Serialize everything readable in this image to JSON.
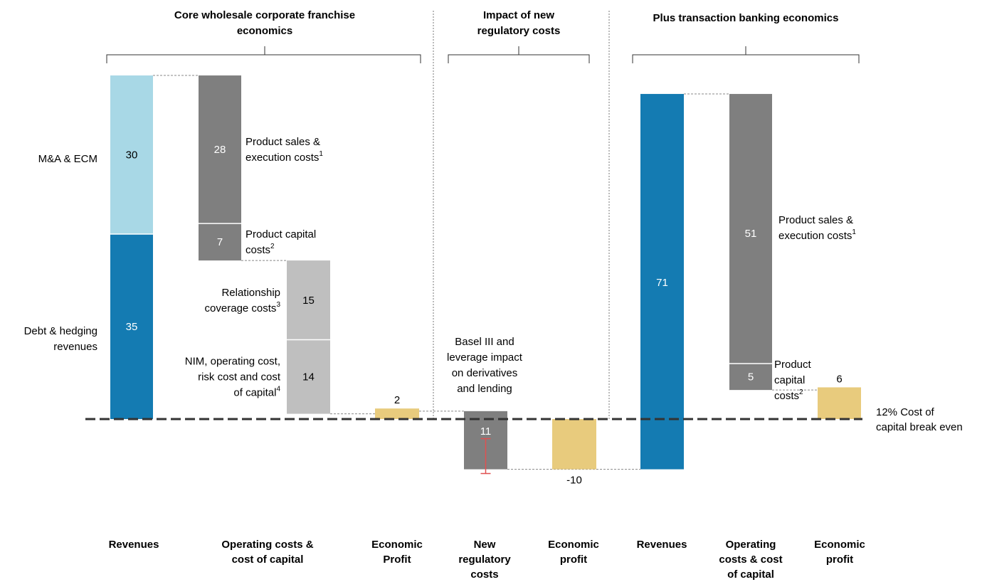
{
  "chart_data": {
    "type": "bar",
    "subtype": "waterfall",
    "baseline_label": [
      "12% Cost of",
      "capital break even"
    ],
    "sections": [
      {
        "title": [
          "Core wholesale corporate franchise",
          "economics"
        ]
      },
      {
        "title": [
          "Impact of new",
          "regulatory costs"
        ]
      },
      {
        "title": [
          "Plus transaction banking economics"
        ]
      }
    ],
    "categories": [
      [
        "Revenues"
      ],
      [
        "Operating costs &",
        "cost of capital"
      ],
      [
        "Economic",
        "Profit"
      ],
      [
        "New",
        "regulatory",
        "costs"
      ],
      [
        "Economic",
        "profit"
      ],
      [
        "Revenues"
      ],
      [
        "Operating",
        "costs & cost",
        "of capital"
      ],
      [
        "Economic",
        "profit"
      ]
    ],
    "segments": [
      {
        "col": 0,
        "from": 35,
        "to": 65,
        "value": "30",
        "color": "#A8D8E6",
        "side_label": [
          "M&A & ECM"
        ]
      },
      {
        "col": 0,
        "from": 0,
        "to": 35,
        "value": "35",
        "color": "#147BB2",
        "side_label": [
          "Debt & hedging",
          "revenues"
        ]
      },
      {
        "col": 1,
        "from": 37,
        "to": 65,
        "value": "28",
        "color": "#7F7F7F",
        "label": [
          "Product sales &",
          "execution costs"
        ],
        "sup": "1"
      },
      {
        "col": 1,
        "from": 30,
        "to": 37,
        "value": "7",
        "color": "#7F7F7F",
        "label": [
          "Product capital",
          "costs"
        ],
        "sup": "2"
      },
      {
        "col": 2,
        "from": 15,
        "to": 30,
        "value": "15",
        "color": "#BFBFBF",
        "label": [
          "Relationship",
          "coverage costs"
        ],
        "sup": "3"
      },
      {
        "col": 2,
        "from": 1,
        "to": 15,
        "value": "14",
        "color": "#BFBFBF",
        "label": [
          "NIM, operating cost,",
          "risk cost and cost",
          "of capital"
        ],
        "sup": "4"
      },
      {
        "col": 3,
        "from": 0,
        "to": 2,
        "value": "2",
        "color": "#E8CB7D"
      },
      {
        "col": 4,
        "from": -9.5,
        "to": 1.5,
        "value": "11",
        "color": "#7F7F7F",
        "label": [
          "Basel III and",
          "leverage impact",
          "on derivatives",
          "and lending"
        ]
      },
      {
        "col": 5,
        "from": -9.5,
        "to": 0,
        "value": "-10",
        "color": "#E8CB7D"
      },
      {
        "col": 6,
        "from": -9.5,
        "to": 61.5,
        "value": "71",
        "color": "#147BB2"
      },
      {
        "col": 7,
        "from": 10.5,
        "to": 61.5,
        "value": "51",
        "color": "#7F7F7F",
        "label": [
          "Product sales &",
          "execution costs"
        ],
        "sup": "1"
      },
      {
        "col": 7,
        "from": 5.5,
        "to": 10.5,
        "value": "5",
        "color": "#7F7F7F",
        "label": [
          "Product",
          "capital",
          "costs"
        ],
        "sup": "2"
      },
      {
        "col": 8,
        "from": 0,
        "to": 6,
        "value": "6",
        "color": "#E8CB7D"
      }
    ],
    "error_bar": {
      "col": 4,
      "from": -10.3,
      "to": -3.7,
      "color": "#E05050"
    },
    "colors": {
      "light_blue": "#A8D8E6",
      "dark_blue": "#147BB2",
      "dark_grey": "#7F7F7F",
      "light_grey": "#BFBFBF",
      "gold": "#E8CB7D"
    }
  }
}
